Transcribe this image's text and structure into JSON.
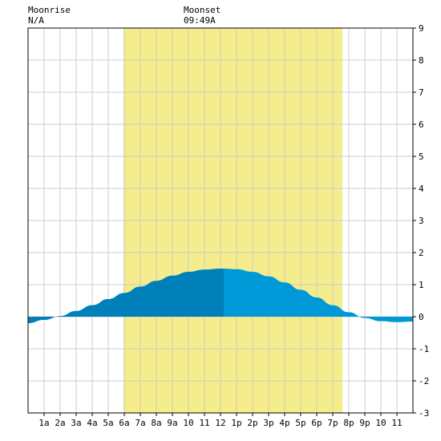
{
  "header": {
    "moonrise_label": "Moonrise",
    "moonrise_value": "N/A",
    "moonset_label": "Moonset",
    "moonset_value": "09:49A"
  },
  "colors": {
    "daylight": "#f5ec8c",
    "tide_before_high": "#0080b8",
    "tide_after_high": "#0099d8",
    "grid": "#cccccc",
    "frame": "#000000"
  },
  "chart_data": {
    "type": "area",
    "title": "",
    "xlabel": "",
    "ylabel": "",
    "xlim": [
      0,
      24
    ],
    "ylim": [
      -3,
      9
    ],
    "y_ticks": [
      -3,
      -2,
      -1,
      0,
      1,
      2,
      3,
      4,
      5,
      6,
      7,
      8,
      9
    ],
    "x_tick_labels": [
      {
        "x": 1,
        "label": "1a"
      },
      {
        "x": 2,
        "label": "2a"
      },
      {
        "x": 3,
        "label": "3a"
      },
      {
        "x": 4,
        "label": "4a"
      },
      {
        "x": 5,
        "label": "5a"
      },
      {
        "x": 6,
        "label": "6a"
      },
      {
        "x": 7,
        "label": "7a"
      },
      {
        "x": 8,
        "label": "8a"
      },
      {
        "x": 9,
        "label": "9a"
      },
      {
        "x": 10,
        "label": "10"
      },
      {
        "x": 11,
        "label": "11"
      },
      {
        "x": 12,
        "label": "12"
      },
      {
        "x": 13,
        "label": "1p"
      },
      {
        "x": 14,
        "label": "2p"
      },
      {
        "x": 15,
        "label": "3p"
      },
      {
        "x": 16,
        "label": "4p"
      },
      {
        "x": 17,
        "label": "5p"
      },
      {
        "x": 18,
        "label": "6p"
      },
      {
        "x": 19,
        "label": "7p"
      },
      {
        "x": 20,
        "label": "8p"
      },
      {
        "x": 21,
        "label": "9p"
      },
      {
        "x": 22,
        "label": "10"
      },
      {
        "x": 23,
        "label": "11"
      }
    ],
    "daylight_start": 5.95,
    "daylight_end": 19.6,
    "high_tide_time": 12.2,
    "series": [
      {
        "x": [
          0,
          1,
          2,
          3,
          4,
          5,
          6,
          7,
          8,
          9,
          10,
          11,
          12,
          12.2,
          13,
          14,
          15,
          16,
          17,
          18,
          19,
          20,
          21,
          22,
          23,
          24
        ],
        "values": [
          -0.2,
          -0.1,
          0.02,
          0.18,
          0.36,
          0.55,
          0.74,
          0.94,
          1.12,
          1.28,
          1.4,
          1.47,
          1.5,
          1.5,
          1.48,
          1.4,
          1.26,
          1.07,
          0.84,
          0.6,
          0.36,
          0.14,
          -0.04,
          -0.14,
          -0.17,
          -0.15
        ]
      }
    ],
    "grid": true
  }
}
